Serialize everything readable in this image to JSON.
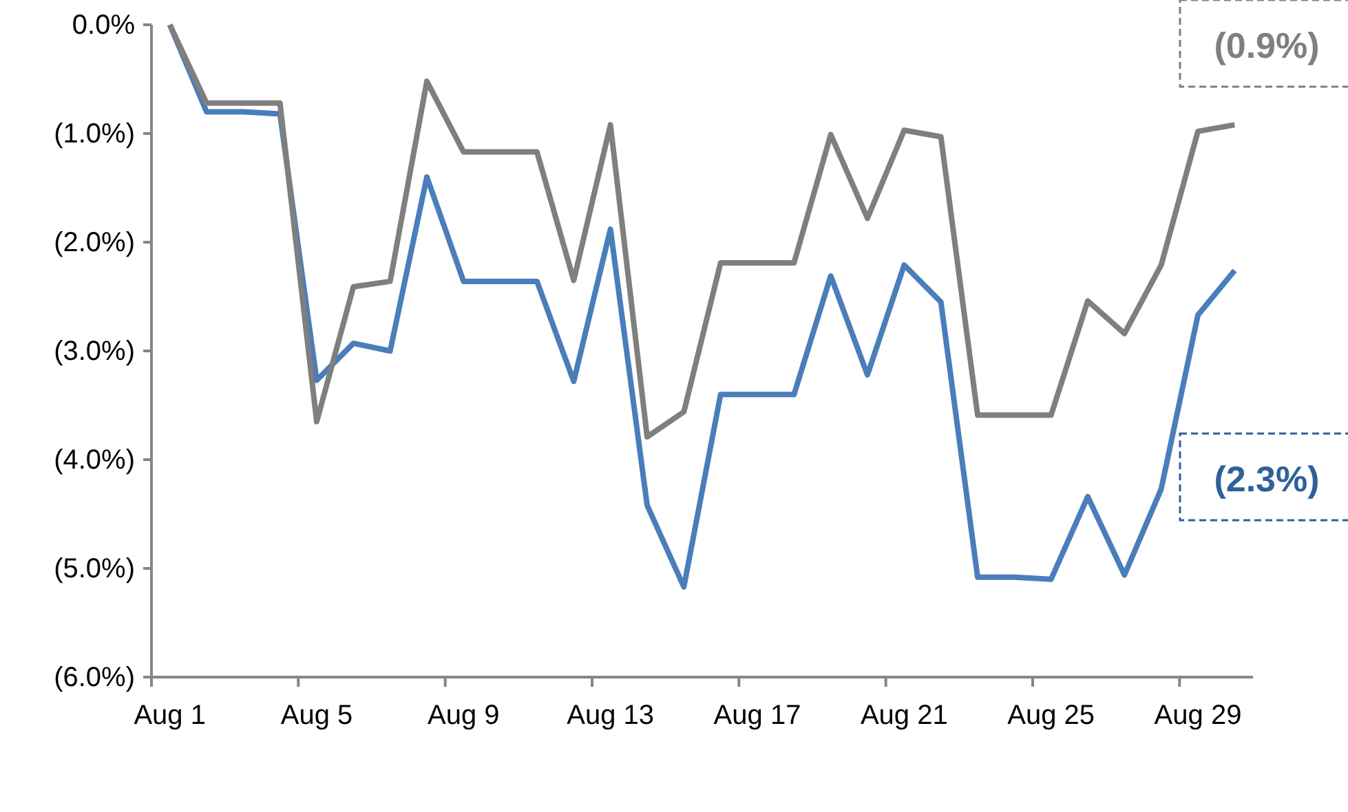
{
  "chart_data": {
    "type": "line",
    "categories": [
      "Aug 1",
      null,
      null,
      null,
      "Aug 5",
      null,
      null,
      null,
      "Aug 9",
      null,
      null,
      null,
      "Aug 13",
      null,
      null,
      null,
      "Aug 17",
      null,
      null,
      null,
      "Aug 21",
      null,
      null,
      null,
      "Aug 25",
      null,
      null,
      null,
      "Aug 29",
      null
    ],
    "series": [
      {
        "color": "#4a7ebb",
        "values": [
          0,
          -0.8,
          -0.8,
          -0.82,
          -3.27,
          -2.93,
          -3.0,
          -1.4,
          -2.36,
          -2.36,
          -2.36,
          -3.28,
          -1.88,
          -4.42,
          -5.17,
          -3.4,
          -3.4,
          -3.4,
          -2.31,
          -3.22,
          -2.21,
          -2.55,
          -5.08,
          -5.08,
          -5.1,
          -4.34,
          -5.06,
          -4.27,
          -2.67,
          -2.26
        ]
      },
      {
        "color": "#7f7f7f",
        "values": [
          0,
          -0.72,
          -0.72,
          -0.72,
          -3.65,
          -2.41,
          -2.36,
          -0.52,
          -1.17,
          -1.17,
          -1.17,
          -2.35,
          -0.92,
          -3.79,
          -3.56,
          -2.19,
          -2.19,
          -2.19,
          -1.01,
          -1.78,
          -0.97,
          -1.03,
          -3.59,
          -3.59,
          -3.59,
          -2.54,
          -2.84,
          -2.21,
          -0.98,
          -0.92
        ]
      }
    ],
    "ylim": [
      -6,
      0
    ],
    "yticks": [
      {
        "value": 0,
        "label": "0.0%"
      },
      {
        "value": -1,
        "label": "(1.0%)"
      },
      {
        "value": -2,
        "label": "(2.0%)"
      },
      {
        "value": -3,
        "label": "(3.0%)"
      },
      {
        "value": -4,
        "label": "(4.0%)"
      },
      {
        "value": -5,
        "label": "(5.0%)"
      },
      {
        "value": -6,
        "label": "(6.0%)"
      }
    ],
    "grid": false,
    "marker": "none",
    "line_style": "solid",
    "annotations": [
      "(2.3%)",
      "(0.9%)"
    ]
  }
}
